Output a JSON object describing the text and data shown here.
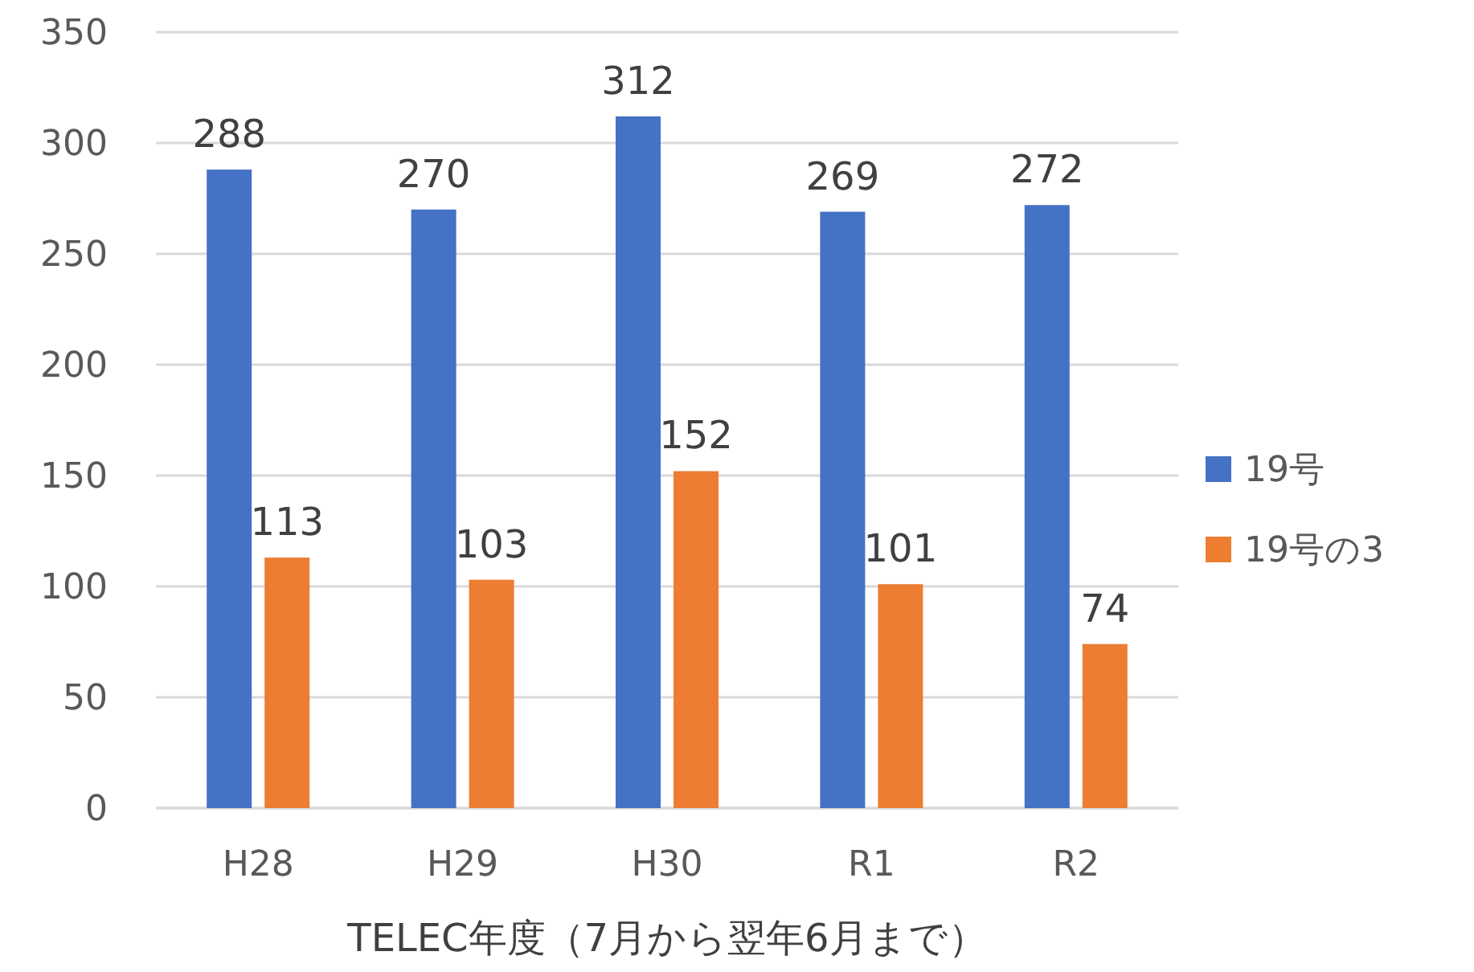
{
  "chart_data": {
    "type": "bar",
    "xlabel": "TELEC年度（7月から翌年6月まで）",
    "categories": [
      "H28",
      "H29",
      "H30",
      "R1",
      "R2"
    ],
    "series": [
      {
        "name": "19号",
        "color": "#4472c4",
        "values": [
          288,
          270,
          312,
          269,
          272
        ]
      },
      {
        "name": "19号の3",
        "color": "#ed7d31",
        "values": [
          113,
          103,
          152,
          101,
          74
        ]
      }
    ],
    "ylim": [
      0,
      350
    ],
    "yticks": [
      0,
      50,
      100,
      150,
      200,
      250,
      300,
      350
    ],
    "grid": "y",
    "legend": "right",
    "data_labels": true
  }
}
